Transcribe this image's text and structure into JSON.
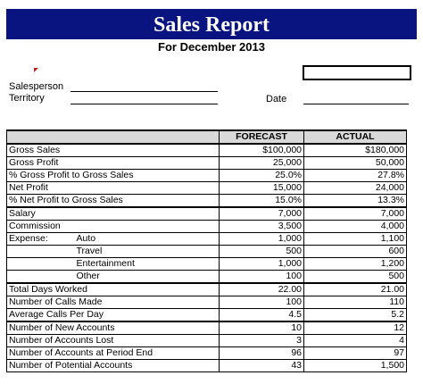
{
  "header": {
    "title": "Sales Report",
    "subtitle": "For December 2013"
  },
  "fields": {
    "salesperson": "Salesperson",
    "territory": "Territory",
    "date": "Date"
  },
  "table": {
    "columns": [
      "FORECAST",
      "ACTUAL"
    ],
    "sections": [
      [
        {
          "label": "Gross Sales",
          "forecast": "$100,000",
          "actual": "$180,000"
        },
        {
          "label": "Gross Profit",
          "forecast": "25,000",
          "actual": "50,000"
        },
        {
          "label": "% Gross Profit to Gross Sales",
          "forecast": "25.0%",
          "actual": "27.8%"
        },
        {
          "label": "Net Profit",
          "forecast": "15,000",
          "actual": "24,000"
        },
        {
          "label": "% Net Profit to Gross Sales",
          "forecast": "15.0%",
          "actual": "13.3%"
        }
      ],
      [
        {
          "label": "Salary",
          "forecast": "7,000",
          "actual": "7,000"
        },
        {
          "label": "Commission",
          "forecast": "3,500",
          "actual": "4,000"
        },
        {
          "label": "Expense:",
          "sub": "Auto",
          "forecast": "1,000",
          "actual": "1,100"
        },
        {
          "sub": "Travel",
          "forecast": "500",
          "actual": "600"
        },
        {
          "sub": "Entertainment",
          "forecast": "1,000",
          "actual": "1,200"
        },
        {
          "sub": "Other",
          "forecast": "100",
          "actual": "500"
        }
      ],
      [
        {
          "label": "Total Days Worked",
          "forecast": "22.00",
          "actual": "21.00"
        },
        {
          "label": "Number of Calls Made",
          "forecast": "100",
          "actual": "110"
        },
        {
          "label": "Average Calls Per Day",
          "forecast": "4.5",
          "actual": "5.2"
        }
      ],
      [
        {
          "label": "Number of New Accounts",
          "forecast": "10",
          "actual": "12"
        },
        {
          "label": "Number of Accounts Lost",
          "forecast": "3",
          "actual": "4"
        },
        {
          "label": "Number of Accounts at Period End",
          "forecast": "96",
          "actual": "97"
        },
        {
          "label": "Number of Potential Accounts",
          "forecast": "43",
          "actual": "1,500"
        }
      ]
    ]
  }
}
